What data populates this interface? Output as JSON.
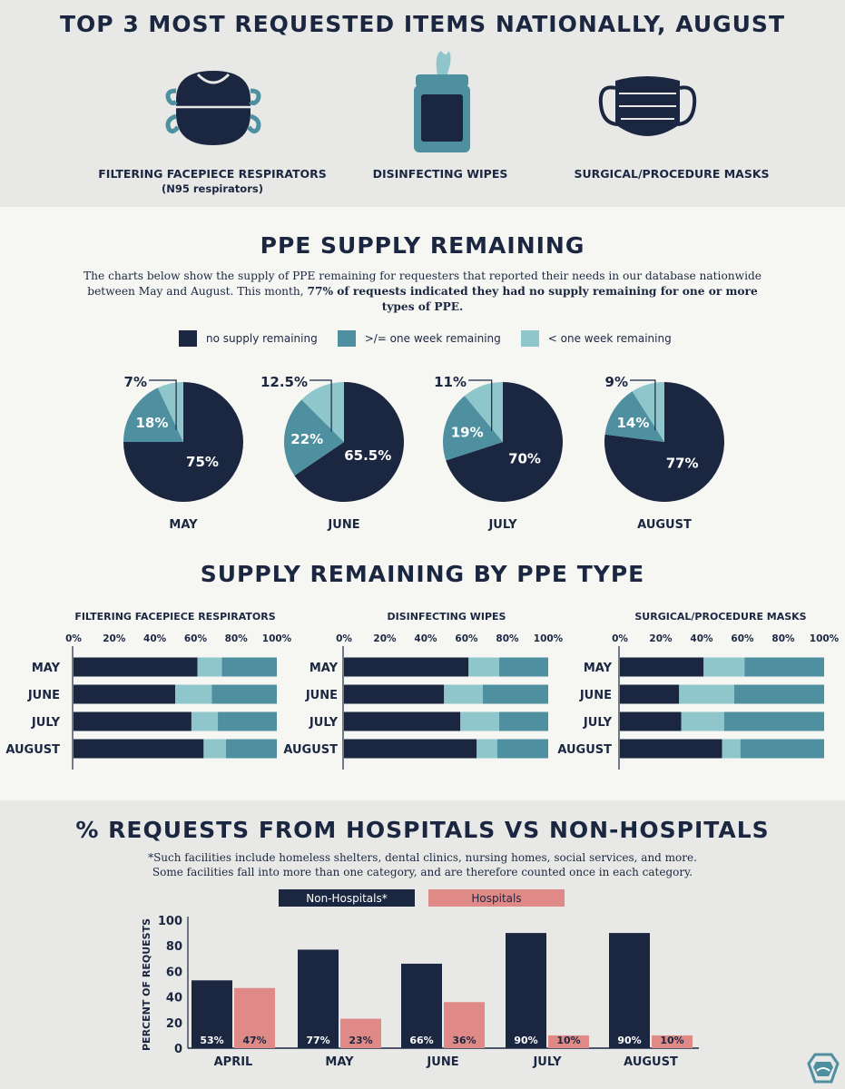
{
  "colors": {
    "navy": "#1b2740",
    "teal": "#4e8fa0",
    "lightteal": "#8fc6cc",
    "pink": "#e08a87",
    "white": "#ffffff"
  },
  "top": {
    "title": "TOP 3 MOST REQUESTED ITEMS NATIONALLY, AUGUST",
    "items": [
      {
        "label": "FILTERING FACEPIECE RESPIRATORS",
        "sub": "(N95 respirators)",
        "icon": "n95-respirator-icon"
      },
      {
        "label": "DISINFECTING WIPES",
        "sub": "",
        "icon": "disinfecting-wipes-icon"
      },
      {
        "label": "SURGICAL/PROCEDURE MASKS",
        "sub": "",
        "icon": "surgical-mask-icon"
      }
    ]
  },
  "supply": {
    "title": "PPE SUPPLY REMAINING",
    "intro_1": "The charts below show the supply of PPE remaining for requesters that reported their needs in our database nationwide between May and August. This month, ",
    "intro_bold": "77% of requests indicated they had no supply remaining for one or more types of PPE.",
    "legend": [
      "no supply remaining",
      ">/= one week remaining",
      "< one week remaining"
    ]
  },
  "by_type": {
    "title": "SUPPLY REMAINING BY PPE TYPE"
  },
  "hospitals": {
    "title": "% REQUESTS FROM HOSPITALS VS NON-HOSPITALS",
    "note_1": "*Such facilities include homeless shelters, dental clinics, nursing homes, social services, and more.",
    "note_2": "Some facilities fall into more than one category, and are therefore counted once in each category."
  },
  "chart_data": [
    {
      "type": "pie",
      "id": "supply-pies",
      "categories": [
        "no supply remaining",
        ">/= one week remaining",
        "< one week remaining"
      ],
      "charts": [
        {
          "label": "MAY",
          "values": [
            75,
            18,
            7
          ],
          "labels": [
            "75%",
            "18%",
            "7%"
          ]
        },
        {
          "label": "JUNE",
          "values": [
            65.5,
            22,
            12.5
          ],
          "labels": [
            "65.5%",
            "22%",
            "12.5%"
          ]
        },
        {
          "label": "JULY",
          "values": [
            70,
            19,
            11
          ],
          "labels": [
            "70%",
            "19%",
            "11%"
          ]
        },
        {
          "label": "AUGUST",
          "values": [
            77,
            14,
            9
          ],
          "labels": [
            "77%",
            "14%",
            "9%"
          ]
        }
      ]
    },
    {
      "type": "bar",
      "id": "ppe-type-bars",
      "orientation": "horizontal",
      "stacked": true,
      "categories": [
        "MAY",
        "JUNE",
        "JULY",
        "AUGUST"
      ],
      "xticks": [
        "0%",
        "20%",
        "40%",
        "60%",
        "80%",
        "100%"
      ],
      "xlim": [
        0,
        100
      ],
      "panels": [
        {
          "title": "FILTERING FACEPIECE RESPIRATORS",
          "series": [
            {
              "name": "no supply remaining",
              "values": [
                61,
                50,
                58,
                64
              ]
            },
            {
              "name": "< one week remaining",
              "values": [
                12,
                18,
                13,
                11
              ]
            },
            {
              "name": ">/= one week remaining",
              "values": [
                27,
                32,
                29,
                25
              ]
            }
          ]
        },
        {
          "title": "DISINFECTING WIPES",
          "series": [
            {
              "name": "no supply remaining",
              "values": [
                61,
                49,
                57,
                65
              ]
            },
            {
              "name": "< one week remaining",
              "values": [
                15,
                19,
                19,
                10
              ]
            },
            {
              "name": ">/= one week remaining",
              "values": [
                24,
                32,
                24,
                25
              ]
            }
          ]
        },
        {
          "title": "SURGICAL/PROCEDURE MASKS",
          "series": [
            {
              "name": "no supply remaining",
              "values": [
                41,
                29,
                30,
                50
              ]
            },
            {
              "name": "< one week remaining",
              "values": [
                20,
                27,
                21,
                9
              ]
            },
            {
              "name": ">/= one week remaining",
              "values": [
                39,
                44,
                49,
                41
              ]
            }
          ]
        }
      ]
    },
    {
      "type": "bar",
      "id": "hospital-bars",
      "categories": [
        "APRIL",
        "MAY",
        "JUNE",
        "JULY",
        "AUGUST"
      ],
      "series": [
        {
          "name": "Non-Hospitals*",
          "values": [
            53,
            77,
            66,
            90,
            90
          ],
          "labels": [
            "53%",
            "77%",
            "66%",
            "90%",
            "90%"
          ]
        },
        {
          "name": "Hospitals",
          "values": [
            47,
            23,
            36,
            10,
            10
          ],
          "labels": [
            "47%",
            "23%",
            "36%",
            "10%",
            "10%"
          ]
        }
      ],
      "ylabel": "PERCENT OF REQUESTS",
      "yticks": [
        0,
        20,
        40,
        60,
        80,
        100
      ],
      "ylim": [
        0,
        100
      ]
    }
  ]
}
